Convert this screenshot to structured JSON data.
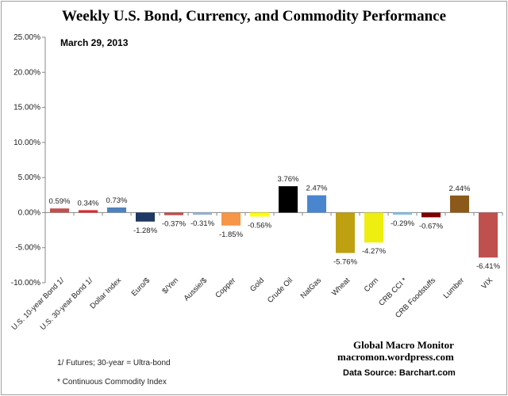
{
  "chart_data": {
    "type": "bar",
    "title": "Weekly U.S. Bond, Currency, and Commodity Performance",
    "subtitle": "March 29, 2013",
    "xlabel": "",
    "ylabel": "",
    "ylim": [
      -10,
      25
    ],
    "yticks": [
      "25.00%",
      "20.00%",
      "15.00%",
      "10.00%",
      "5.00%",
      "0.00%",
      "-5.00%",
      "-10.00%"
    ],
    "grid": false,
    "categories": [
      "U.S. 10-year Bond 1/",
      "U.S. 30-year Bond 1/",
      "Dollar Index",
      "Euro/$",
      "$/Yen",
      "Aussie/$",
      "Copper",
      "Gold",
      "Crude Oil",
      "NatGas",
      "Wheat",
      "Corn",
      "CRB CCI *",
      "CRB Foodstuffs",
      "Lumber",
      "VIX"
    ],
    "values": [
      0.59,
      0.34,
      0.73,
      -1.28,
      -0.37,
      -0.31,
      -1.85,
      -0.56,
      3.76,
      2.47,
      -5.76,
      -4.27,
      -0.29,
      -0.67,
      2.44,
      -6.41
    ],
    "data_labels": [
      "0.59%",
      "0.34%",
      "0.73%",
      "-1.28%",
      "-0.37%",
      "-0.31%",
      "-1.85%",
      "-0.56%",
      "3.76%",
      "2.47%",
      "-5.76%",
      "-4.27%",
      "-0.29%",
      "-0.67%",
      "2.44%",
      "-6.41%"
    ],
    "colors": [
      "#c0504d",
      "#e02424",
      "#4f81bd",
      "#1f3864",
      "#c0504d",
      "#95b3d7",
      "#f79646",
      "#ffff00",
      "#000000",
      "#4a86d0",
      "#bfa010",
      "#eeee10",
      "#7ec0ee",
      "#800000",
      "#8b5a1a",
      "#c0504d"
    ]
  },
  "notes": {
    "footnote1": "1/ Futures; 30-year = Ultra-bond",
    "footnote2": "* Continuous Commodity Index",
    "brand": "Global Macro Monitor",
    "site": "macromon.wordpress.com",
    "source": "Data Source:  Barchart.com"
  }
}
